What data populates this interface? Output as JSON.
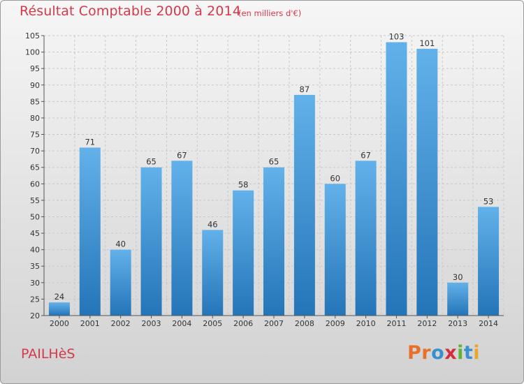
{
  "header": {
    "title": "Résultat Comptable 2000 à 2014",
    "unit": "(en milliers d'€)"
  },
  "footer": {
    "place": "PAILHèS",
    "brand_letters": [
      "P",
      "r",
      "o",
      "x",
      "i",
      "t",
      "i"
    ]
  },
  "colors": {
    "title": "#d4394a",
    "bar_top": "#62b1ea",
    "bar_bottom": "#2475b8",
    "brand": [
      "#e8702a",
      "#e8702a",
      "#3a8fd1",
      "#d42d3c",
      "#5fb236",
      "#3a8fd1",
      "#e8a72a"
    ]
  },
  "chart_data": {
    "type": "bar",
    "categories": [
      "2000",
      "2001",
      "2002",
      "2003",
      "2004",
      "2005",
      "2006",
      "2007",
      "2008",
      "2009",
      "2010",
      "2011",
      "2012",
      "2013",
      "2014"
    ],
    "values": [
      24,
      71,
      40,
      65,
      67,
      46,
      58,
      65,
      87,
      60,
      67,
      103,
      101,
      30,
      53
    ],
    "title": "Résultat Comptable 2000 à 2014",
    "ylim": [
      20,
      105
    ],
    "yticks": [
      20,
      25,
      30,
      35,
      40,
      45,
      50,
      55,
      60,
      65,
      70,
      75,
      80,
      85,
      90,
      95,
      100,
      105
    ],
    "grid": true,
    "data_labels": true
  }
}
